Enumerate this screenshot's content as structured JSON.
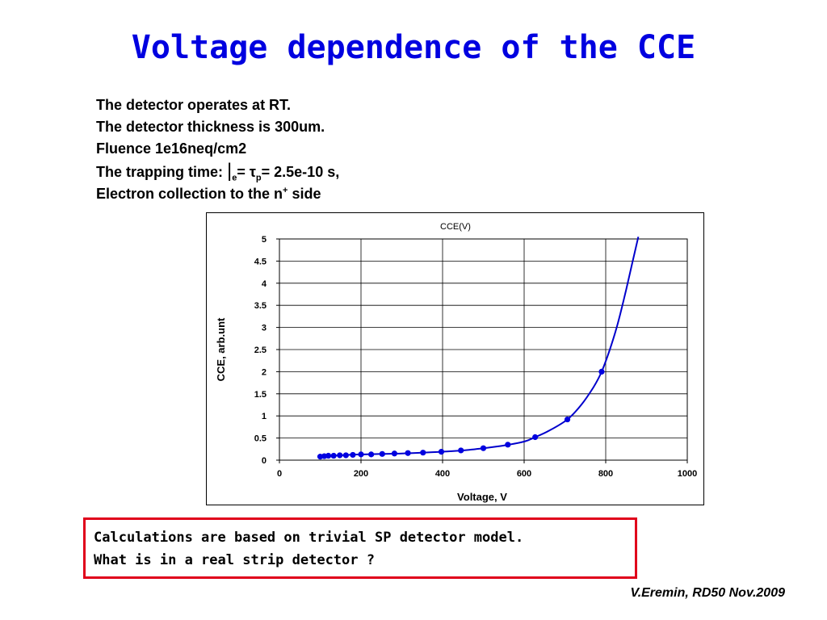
{
  "slide": {
    "title": "Voltage dependence of the CCE",
    "info": {
      "line1": "The detector operates at RT.",
      "line2": "The detector thickness is 300um.",
      "line3": "Fluence 1e16neq/cm2",
      "line4_prefix": "The trapping time:  ",
      "line4_symbol": "|",
      "line4_sub_e": "e",
      "line4_mid": "= τ",
      "line4_sub_p": "p",
      "line4_suffix": "= 2.5e-10 s,",
      "line5_prefix": "Electron collection to the n",
      "line5_sup": "+",
      "line5_suffix": " side"
    },
    "note": {
      "line1": "Calculations are based on trivial SP detector model.",
      "line2": "What is in a real strip detector ?"
    },
    "credit": "V.Eremin, RD50 Nov.2009"
  },
  "chart_data": {
    "type": "line",
    "title": "CCE(V)",
    "xlabel": "Voltage, V",
    "ylabel": "CCE, arb.unt",
    "xlim": [
      0,
      1000
    ],
    "ylim": [
      0,
      5
    ],
    "xticks": [
      0,
      200,
      400,
      600,
      800,
      1000
    ],
    "xtick_labels": [
      "0",
      "200",
      "400",
      "600",
      "800",
      "1000"
    ],
    "yticks": [
      0,
      0.5,
      1,
      1.5,
      2,
      2.5,
      3,
      3.5,
      4,
      4.5,
      5
    ],
    "ytick_labels": [
      "0",
      "0.5",
      "1",
      "1.5",
      "2",
      "2.5",
      "3",
      "3.5",
      "4",
      "4.5",
      "5"
    ],
    "grid": true,
    "line_color": "#0000cc",
    "marker_color": "#0000e0",
    "series": [
      {
        "x": [
          100,
          110,
          120,
          133,
          148,
          163,
          180,
          200,
          225,
          252,
          282,
          315,
          352,
          397,
          445,
          500,
          560,
          627,
          706,
          790
        ],
        "y": [
          0.08,
          0.09,
          0.1,
          0.1,
          0.11,
          0.11,
          0.12,
          0.13,
          0.13,
          0.14,
          0.15,
          0.16,
          0.17,
          0.19,
          0.22,
          0.27,
          0.35,
          0.52,
          0.92,
          2.0
        ]
      }
    ],
    "curve": {
      "x": [
        100,
        150,
        200,
        250,
        300,
        350,
        400,
        450,
        500,
        550,
        600,
        627,
        660,
        706,
        740,
        770,
        790,
        810,
        830,
        850,
        865,
        880
      ],
      "y": [
        0.08,
        0.11,
        0.13,
        0.14,
        0.15,
        0.17,
        0.19,
        0.22,
        0.27,
        0.33,
        0.42,
        0.52,
        0.66,
        0.92,
        1.25,
        1.65,
        2.0,
        2.5,
        3.1,
        3.85,
        4.45,
        5.05
      ]
    }
  }
}
